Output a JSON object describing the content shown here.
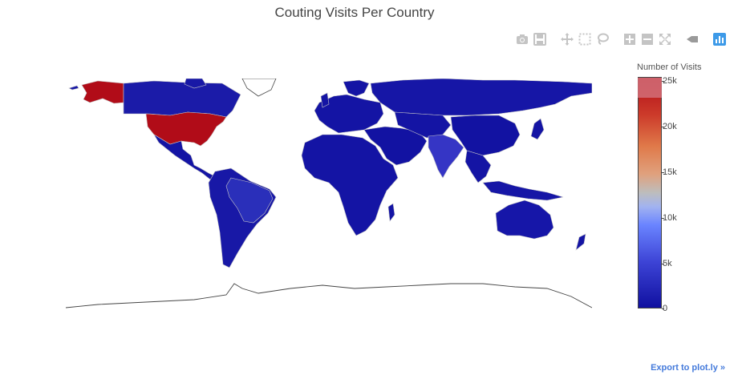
{
  "title": "Couting Visits Per Country",
  "modebar": {
    "icons": [
      "camera-icon",
      "save-icon",
      "pan-icon",
      "box-select-icon",
      "lasso-icon",
      "zoom-in-icon",
      "zoom-out-icon",
      "autoscale-icon",
      "reset-icon",
      "plotly-logo-icon"
    ]
  },
  "colorbar": {
    "title": "Number of Visits",
    "ticks": [
      "25k",
      "20k",
      "15k",
      "10k",
      "5k",
      "0"
    ],
    "tick_values": [
      25000,
      20000,
      15000,
      10000,
      5000,
      0
    ]
  },
  "export_link": "Export to plot.ly »",
  "chart_data": {
    "type": "choropleth",
    "title": "Couting Visits Per Country",
    "colorbar_title": "Number of Visits",
    "zrange": [
      0,
      25000
    ],
    "colorscale": [
      "#1010a0",
      "#6a84ff",
      "#bdbdbd",
      "#e07a4a",
      "#b10c18"
    ],
    "regions": [
      {
        "name": "United States",
        "value": 24000
      },
      {
        "name": "Alaska",
        "value": 24000
      },
      {
        "name": "India",
        "value": 5500
      },
      {
        "name": "Russia",
        "value": 2000
      },
      {
        "name": "Canada",
        "value": 1500
      },
      {
        "name": "Brazil",
        "value": 1500
      },
      {
        "name": "Australia",
        "value": 1000
      },
      {
        "name": "China",
        "value": 1000
      },
      {
        "name": "Mexico",
        "value": 800
      },
      {
        "name": "Africa (various)",
        "value": 500
      },
      {
        "name": "Europe (various)",
        "value": 800
      },
      {
        "name": "Indonesia",
        "value": 600
      }
    ]
  },
  "colors": {
    "title": "#444444",
    "export_link": "#447adb",
    "max_color": "#b10c18",
    "min_color": "#1010a0"
  }
}
